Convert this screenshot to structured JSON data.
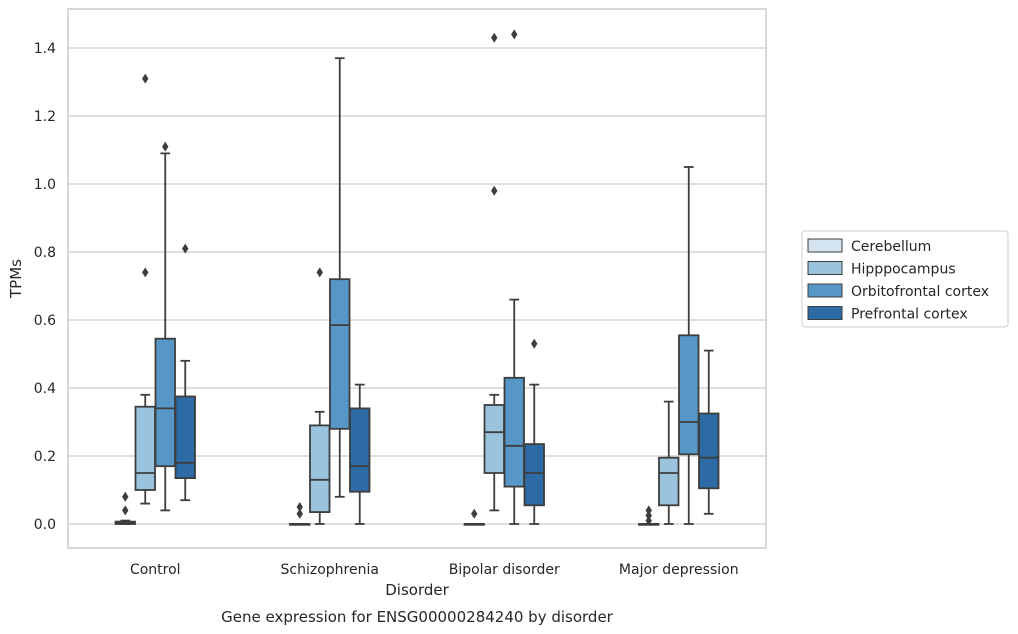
{
  "chart_data": {
    "type": "box",
    "xlabel": "Disorder",
    "ylabel": "TPMs",
    "caption": "Gene expression for ENSG00000284240 by disorder",
    "ylim": [
      -0.07,
      1.52
    ],
    "yticks": [
      0.0,
      0.2,
      0.4,
      0.6,
      0.8,
      1.0,
      1.2,
      1.4
    ],
    "ytick_labels": [
      "0.0",
      "0.2",
      "0.4",
      "0.6",
      "0.8",
      "1.0",
      "1.2",
      "1.4"
    ],
    "grid": "horizontal",
    "legend_placement": "right",
    "categories": [
      "Control",
      "Schizophrenia",
      "Bipolar disorder",
      "Major depression"
    ],
    "series": [
      {
        "name": "Cerebellum",
        "color": "#d4e3f0",
        "boxes": [
          {
            "whislo": 0.0,
            "q1": 0.0,
            "med": 0.003,
            "q3": 0.007,
            "whishi": 0.01,
            "fliers": [
              0.04,
              0.08
            ]
          },
          {
            "whislo": 0.0,
            "q1": 0.0,
            "med": 0.0,
            "q3": 0.0,
            "whishi": 0.0,
            "fliers": [
              0.03,
              0.05
            ]
          },
          {
            "whislo": 0.0,
            "q1": 0.0,
            "med": 0.0,
            "q3": 0.0,
            "whishi": 0.0,
            "fliers": [
              0.03
            ]
          },
          {
            "whislo": 0.0,
            "q1": 0.0,
            "med": 0.0,
            "q3": 0.0,
            "whishi": 0.0,
            "fliers": [
              0.01,
              0.025,
              0.04
            ]
          }
        ]
      },
      {
        "name": "Hipppocampus",
        "color": "#9ac4de",
        "boxes": [
          {
            "whislo": 0.06,
            "q1": 0.1,
            "med": 0.15,
            "q3": 0.345,
            "whishi": 0.38,
            "fliers": [
              0.74,
              1.31
            ]
          },
          {
            "whislo": 0.0,
            "q1": 0.035,
            "med": 0.13,
            "q3": 0.29,
            "whishi": 0.33,
            "fliers": [
              0.74
            ]
          },
          {
            "whislo": 0.04,
            "q1": 0.15,
            "med": 0.27,
            "q3": 0.35,
            "whishi": 0.38,
            "fliers": [
              0.98,
              1.43
            ]
          },
          {
            "whislo": 0.0,
            "q1": 0.055,
            "med": 0.15,
            "q3": 0.195,
            "whishi": 0.36,
            "fliers": []
          }
        ]
      },
      {
        "name": "Orbitofrontal cortex",
        "color": "#5697c8",
        "boxes": [
          {
            "whislo": 0.04,
            "q1": 0.17,
            "med": 0.34,
            "q3": 0.545,
            "whishi": 1.09,
            "fliers": [
              1.11
            ]
          },
          {
            "whislo": 0.08,
            "q1": 0.28,
            "med": 0.585,
            "q3": 0.72,
            "whishi": 1.37,
            "fliers": []
          },
          {
            "whislo": 0.0,
            "q1": 0.11,
            "med": 0.23,
            "q3": 0.43,
            "whishi": 0.66,
            "fliers": [
              1.44
            ]
          },
          {
            "whislo": 0.0,
            "q1": 0.205,
            "med": 0.3,
            "q3": 0.555,
            "whishi": 1.05,
            "fliers": []
          }
        ]
      },
      {
        "name": "Prefrontal cortex",
        "color": "#2c6ba6",
        "boxes": [
          {
            "whislo": 0.07,
            "q1": 0.135,
            "med": 0.18,
            "q3": 0.375,
            "whishi": 0.48,
            "fliers": [
              0.81
            ]
          },
          {
            "whislo": 0.0,
            "q1": 0.095,
            "med": 0.17,
            "q3": 0.34,
            "whishi": 0.41,
            "fliers": []
          },
          {
            "whislo": 0.0,
            "q1": 0.055,
            "med": 0.15,
            "q3": 0.235,
            "whishi": 0.41,
            "fliers": [
              0.53
            ]
          },
          {
            "whislo": 0.03,
            "q1": 0.105,
            "med": 0.195,
            "q3": 0.325,
            "whishi": 0.51,
            "fliers": []
          }
        ]
      }
    ]
  }
}
